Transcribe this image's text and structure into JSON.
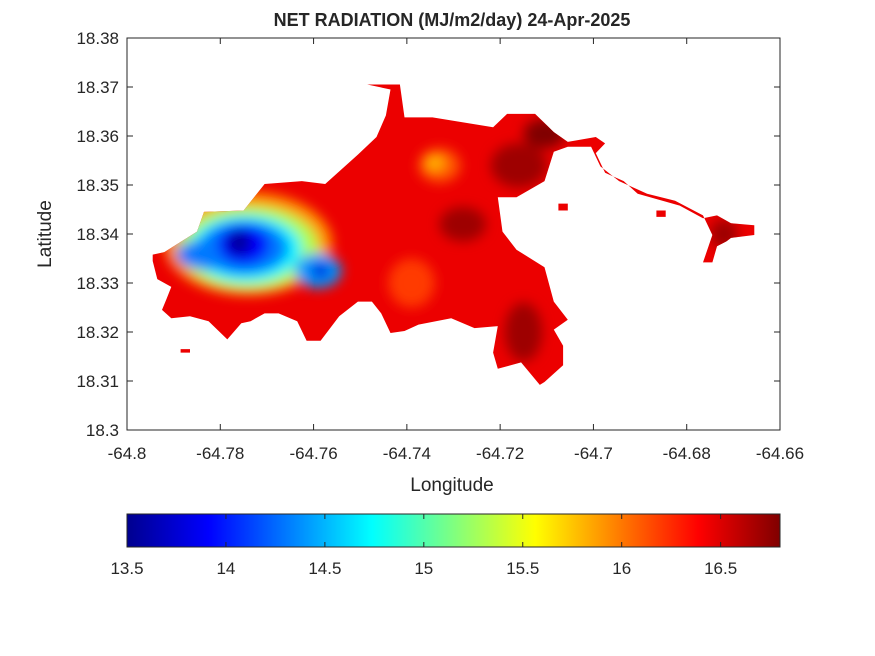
{
  "chart_data": {
    "type": "heatmap",
    "title": "NET RADIATION (MJ/m2/day) 24-Apr-2025",
    "xlabel": "Longitude",
    "ylabel": "Latitude",
    "xlim": [
      -64.8,
      -64.66
    ],
    "ylim": [
      18.3,
      18.38
    ],
    "x_ticks": [
      "-64.8",
      "-64.78",
      "-64.76",
      "-64.74",
      "-64.72",
      "-64.7",
      "-64.68",
      "-64.66"
    ],
    "y_ticks": [
      "18.3",
      "18.31",
      "18.32",
      "18.33",
      "18.34",
      "18.35",
      "18.36",
      "18.37",
      "18.38"
    ],
    "colormap": "jet",
    "clim": [
      13.5,
      16.8
    ],
    "colorbar_ticks": [
      "13.5",
      "14",
      "14.5",
      "15",
      "15.5",
      "16",
      "16.5"
    ],
    "colorbar_position": "bottom",
    "grid": false,
    "landmass_outline": [
      [
        -64.792,
        18.3363
      ],
      [
        -64.785,
        18.3405
      ],
      [
        -64.7835,
        18.3445
      ],
      [
        -64.775,
        18.3448
      ],
      [
        -64.7705,
        18.3502
      ],
      [
        -64.7625,
        18.3508
      ],
      [
        -64.7575,
        18.3502
      ],
      [
        -64.7505,
        18.3562
      ],
      [
        -64.7465,
        18.3598
      ],
      [
        -64.7445,
        18.3642
      ],
      [
        -64.7435,
        18.3695
      ],
      [
        -64.7485,
        18.3705
      ],
      [
        -64.7415,
        18.3705
      ],
      [
        -64.7405,
        18.3638
      ],
      [
        -64.7345,
        18.3638
      ],
      [
        -64.7215,
        18.3618
      ],
      [
        -64.7185,
        18.3645
      ],
      [
        -64.7125,
        18.3645
      ],
      [
        -64.7085,
        18.3608
      ],
      [
        -64.7055,
        18.3588
      ],
      [
        -64.6995,
        18.3598
      ],
      [
        -64.6975,
        18.3585
      ],
      [
        -64.6995,
        18.3565
      ],
      [
        -64.6975,
        18.3525
      ],
      [
        -64.6935,
        18.3508
      ],
      [
        -64.6905,
        18.3482
      ],
      [
        -64.6815,
        18.3458
      ],
      [
        -64.6765,
        18.3432
      ],
      [
        -64.6735,
        18.3438
      ],
      [
        -64.6705,
        18.3422
      ],
      [
        -64.6655,
        18.3418
      ],
      [
        -64.6655,
        18.3398
      ],
      [
        -64.6705,
        18.3392
      ],
      [
        -64.6715,
        18.3385
      ],
      [
        -64.6735,
        18.3375
      ],
      [
        -64.6745,
        18.3342
      ],
      [
        -64.6765,
        18.3342
      ],
      [
        -64.6745,
        18.3398
      ],
      [
        -64.6765,
        18.3438
      ],
      [
        -64.6825,
        18.3468
      ],
      [
        -64.6885,
        18.3482
      ],
      [
        -64.6945,
        18.3508
      ],
      [
        -64.6985,
        18.3538
      ],
      [
        -64.7005,
        18.3578
      ],
      [
        -64.7055,
        18.3578
      ],
      [
        -64.7085,
        18.3568
      ],
      [
        -64.7105,
        18.3508
      ],
      [
        -64.7165,
        18.3475
      ],
      [
        -64.7205,
        18.3475
      ],
      [
        -64.7195,
        18.3405
      ],
      [
        -64.7165,
        18.3368
      ],
      [
        -64.7105,
        18.3332
      ],
      [
        -64.7085,
        18.3262
      ],
      [
        -64.7055,
        18.3225
      ],
      [
        -64.7085,
        18.3205
      ],
      [
        -64.7065,
        18.3172
      ],
      [
        -64.7065,
        18.3132
      ],
      [
        -64.7105,
        18.3098
      ],
      [
        -64.7115,
        18.3092
      ],
      [
        -64.7155,
        18.3138
      ],
      [
        -64.7205,
        18.3125
      ],
      [
        -64.7215,
        18.3158
      ],
      [
        -64.7205,
        18.3212
      ],
      [
        -64.7255,
        18.3208
      ],
      [
        -64.7305,
        18.3228
      ],
      [
        -64.7375,
        18.3215
      ],
      [
        -64.7405,
        18.3202
      ],
      [
        -64.7435,
        18.3198
      ],
      [
        -64.7455,
        18.3238
      ],
      [
        -64.7475,
        18.3262
      ],
      [
        -64.7505,
        18.3262
      ],
      [
        -64.7545,
        18.3232
      ],
      [
        -64.7585,
        18.3182
      ],
      [
        -64.7615,
        18.3182
      ],
      [
        -64.7635,
        18.3222
      ],
      [
        -64.7675,
        18.3238
      ],
      [
        -64.7705,
        18.3238
      ],
      [
        -64.7735,
        18.3222
      ],
      [
        -64.7755,
        18.3218
      ],
      [
        -64.7785,
        18.3185
      ],
      [
        -64.7825,
        18.3222
      ],
      [
        -64.7865,
        18.3232
      ],
      [
        -64.7905,
        18.3228
      ],
      [
        -64.7925,
        18.3245
      ],
      [
        -64.7915,
        18.3268
      ],
      [
        -64.7905,
        18.3292
      ],
      [
        -64.7935,
        18.3308
      ],
      [
        -64.7945,
        18.3345
      ],
      [
        -64.7945,
        18.3358
      ]
    ],
    "landmass_islands": [
      [
        [
          -64.7075,
          18.3462
        ],
        [
          -64.7055,
          18.3462
        ],
        [
          -64.7055,
          18.3448
        ],
        [
          -64.7075,
          18.3448
        ]
      ],
      [
        [
          -64.7885,
          18.3165
        ],
        [
          -64.7865,
          18.3165
        ],
        [
          -64.7865,
          18.3158
        ],
        [
          -64.7885,
          18.3158
        ]
      ],
      [
        [
          -64.6865,
          18.3448
        ],
        [
          -64.6845,
          18.3448
        ],
        [
          -64.6845,
          18.3435
        ],
        [
          -64.6865,
          18.3435
        ]
      ]
    ],
    "value_blobs": [
      {
        "x": -64.774,
        "y": 18.338,
        "rx": 0.018,
        "ry": 0.0105,
        "value": 15.9
      },
      {
        "x": -64.774,
        "y": 18.3372,
        "rx": 0.015,
        "ry": 0.0085,
        "value": 15.3
      },
      {
        "x": -64.7745,
        "y": 18.337,
        "rx": 0.012,
        "ry": 0.0068,
        "value": 14.7
      },
      {
        "x": -64.775,
        "y": 18.3372,
        "rx": 0.0095,
        "ry": 0.0055,
        "value": 14.3
      },
      {
        "x": -64.759,
        "y": 18.3325,
        "rx": 0.005,
        "ry": 0.0035,
        "value": 14.4
      },
      {
        "x": -64.783,
        "y": 18.3358,
        "rx": 0.0065,
        "ry": 0.003,
        "value": 14.3
      },
      {
        "x": -64.775,
        "y": 18.3378,
        "rx": 0.0055,
        "ry": 0.004,
        "value": 13.9
      },
      {
        "x": -64.776,
        "y": 18.3382,
        "rx": 0.0025,
        "ry": 0.0025,
        "value": 13.6
      },
      {
        "x": -64.7585,
        "y": 18.3325,
        "rx": 0.002,
        "ry": 0.0015,
        "value": 13.8
      },
      {
        "x": -64.733,
        "y": 18.354,
        "rx": 0.0045,
        "ry": 0.0035,
        "value": 16.1
      },
      {
        "x": -64.734,
        "y": 18.3545,
        "rx": 0.002,
        "ry": 0.0015,
        "value": 15.8
      },
      {
        "x": -64.739,
        "y": 18.33,
        "rx": 0.005,
        "ry": 0.005,
        "value": 16.2
      },
      {
        "x": -64.716,
        "y": 18.354,
        "rx": 0.006,
        "ry": 0.0045,
        "value": 16.7
      },
      {
        "x": -64.7105,
        "y": 18.3605,
        "rx": 0.0045,
        "ry": 0.003,
        "value": 16.8
      },
      {
        "x": -64.728,
        "y": 18.342,
        "rx": 0.005,
        "ry": 0.0035,
        "value": 16.7
      },
      {
        "x": -64.715,
        "y": 18.32,
        "rx": 0.004,
        "ry": 0.006,
        "value": 16.7
      },
      {
        "x": -64.672,
        "y": 18.34,
        "rx": 0.003,
        "ry": 0.003,
        "value": 16.7
      }
    ]
  }
}
